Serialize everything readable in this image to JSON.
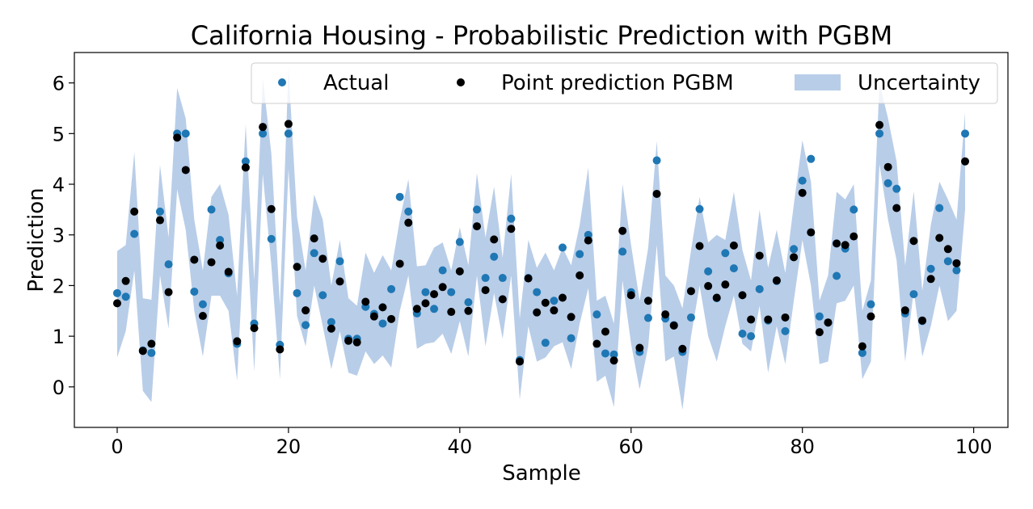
{
  "chart_data": {
    "type": "scatter",
    "title": "California Housing - Probabilistic Prediction with PGBM",
    "xlabel": "Sample",
    "ylabel": "Prediction",
    "xlim": [
      -5,
      104
    ],
    "ylim": [
      -0.8,
      6.6
    ],
    "xticks": [
      0,
      20,
      40,
      60,
      80,
      100
    ],
    "yticks": [
      0,
      1,
      2,
      3,
      4,
      5,
      6
    ],
    "grid": false,
    "legend_position": "top-right",
    "colors": {
      "actual": "#1f77b4",
      "point": "#000000",
      "uncertainty": "#b8cde8"
    },
    "legend": {
      "actual": "Actual",
      "point": "Point prediction PGBM",
      "uncertainty": "Uncertainty"
    },
    "actual": [
      1.85,
      1.78,
      3.02,
      0.72,
      0.67,
      3.46,
      2.42,
      5.0,
      5.0,
      1.88,
      1.63,
      3.5,
      2.9,
      2.24,
      0.85,
      4.45,
      1.25,
      5.0,
      2.92,
      0.83,
      5.0,
      1.85,
      1.22,
      2.64,
      1.81,
      1.28,
      2.48,
      0.95,
      0.95,
      1.58,
      1.44,
      1.25,
      1.93,
      3.75,
      3.46,
      1.45,
      1.87,
      1.54,
      2.3,
      1.87,
      2.86,
      1.67,
      3.5,
      2.15,
      2.57,
      2.15,
      3.32,
      0.53,
      2.15,
      1.87,
      0.87,
      1.7,
      2.75,
      0.96,
      2.62,
      3.0,
      1.43,
      0.66,
      0.64,
      2.67,
      1.87,
      0.69,
      1.36,
      4.47,
      1.35,
      1.22,
      0.69,
      1.37,
      3.51,
      2.28,
      1.75,
      2.64,
      2.34,
      1.05,
      1.0,
      1.93,
      1.31,
      2.09,
      1.1,
      2.72,
      4.07,
      4.5,
      1.39,
      1.27,
      2.19,
      2.73,
      3.5,
      0.67,
      1.63,
      5.0,
      4.02,
      3.91,
      1.45,
      1.83,
      1.3,
      2.33,
      3.53,
      2.48,
      2.3,
      5.0
    ],
    "prediction": [
      1.65,
      2.09,
      3.46,
      0.71,
      0.85,
      3.29,
      1.87,
      4.92,
      4.28,
      2.51,
      1.4,
      2.46,
      2.79,
      2.27,
      0.9,
      4.33,
      1.16,
      5.13,
      3.51,
      0.74,
      5.19,
      2.37,
      1.51,
      2.93,
      2.53,
      1.15,
      2.08,
      0.91,
      0.88,
      1.68,
      1.39,
      1.57,
      1.34,
      2.43,
      3.24,
      1.54,
      1.65,
      1.83,
      1.97,
      1.48,
      2.28,
      1.5,
      3.17,
      1.91,
      2.91,
      1.73,
      3.12,
      0.5,
      2.14,
      1.47,
      1.66,
      1.51,
      1.76,
      1.38,
      2.2,
      2.89,
      0.85,
      1.09,
      0.52,
      3.08,
      1.81,
      0.77,
      1.7,
      3.81,
      1.43,
      1.21,
      0.75,
      1.89,
      2.78,
      1.99,
      1.76,
      2.02,
      2.79,
      1.81,
      1.33,
      2.59,
      1.33,
      2.1,
      1.37,
      2.56,
      3.83,
      3.05,
      1.08,
      1.27,
      2.83,
      2.8,
      2.97,
      0.8,
      1.39,
      5.17,
      4.34,
      3.53,
      1.51,
      2.88,
      1.31,
      2.13,
      2.94,
      2.72,
      2.44,
      4.45
    ],
    "lower": [
      0.58,
      1.1,
      2.3,
      -0.08,
      -0.3,
      2.2,
      1.15,
      3.9,
      3.1,
      1.5,
      0.6,
      1.8,
      1.8,
      1.5,
      0.12,
      3.5,
      0.3,
      4.2,
      2.4,
      0.15,
      4.3,
      1.4,
      0.8,
      2.0,
      1.2,
      0.35,
      1.1,
      0.28,
      0.22,
      0.7,
      0.45,
      0.62,
      0.38,
      1.5,
      2.2,
      0.75,
      0.85,
      0.88,
      1.05,
      0.65,
      1.3,
      0.6,
      2.2,
      0.8,
      1.85,
      0.95,
      2.2,
      -0.25,
      1.2,
      0.5,
      0.58,
      0.8,
      0.88,
      0.35,
      1.25,
      1.95,
      0.1,
      0.22,
      -0.4,
      2.1,
      0.85,
      -0.05,
      0.8,
      2.8,
      0.5,
      0.6,
      -0.45,
      1.0,
      2.0,
      1.0,
      0.5,
      1.2,
      1.8,
      0.85,
      0.7,
      1.6,
      0.28,
      1.2,
      0.45,
      1.7,
      2.9,
      2.0,
      0.45,
      0.5,
      1.65,
      1.7,
      2.0,
      0.15,
      0.5,
      4.4,
      3.3,
      2.5,
      0.5,
      1.9,
      0.6,
      1.2,
      2.0,
      1.3,
      1.5,
      3.5
    ],
    "upper": [
      2.68,
      2.8,
      4.63,
      1.75,
      1.72,
      4.38,
      2.95,
      5.9,
      5.3,
      3.3,
      2.3,
      3.75,
      4.0,
      3.4,
      1.8,
      5.18,
      2.1,
      6.1,
      4.6,
      1.6,
      6.3,
      3.35,
      2.3,
      3.8,
      3.3,
      2.0,
      2.9,
      1.75,
      1.6,
      2.65,
      2.25,
      2.6,
      2.3,
      3.3,
      4.1,
      2.38,
      2.4,
      2.75,
      2.85,
      2.3,
      3.15,
      2.4,
      4.22,
      2.95,
      3.95,
      2.55,
      4.2,
      1.35,
      2.9,
      2.35,
      2.65,
      2.3,
      2.75,
      2.4,
      3.2,
      4.33,
      1.7,
      1.8,
      1.25,
      4.0,
      2.8,
      1.7,
      2.75,
      4.85,
      2.2,
      2.0,
      1.55,
      2.7,
      3.75,
      2.85,
      3.0,
      2.9,
      3.85,
      2.7,
      2.1,
      3.5,
      2.35,
      3.1,
      2.25,
      3.6,
      4.87,
      4.05,
      1.7,
      2.2,
      3.85,
      3.7,
      4.0,
      1.5,
      2.1,
      6.0,
      5.3,
      4.45,
      2.4,
      3.86,
      1.9,
      3.2,
      4.05,
      3.7,
      3.3,
      5.42
    ]
  }
}
